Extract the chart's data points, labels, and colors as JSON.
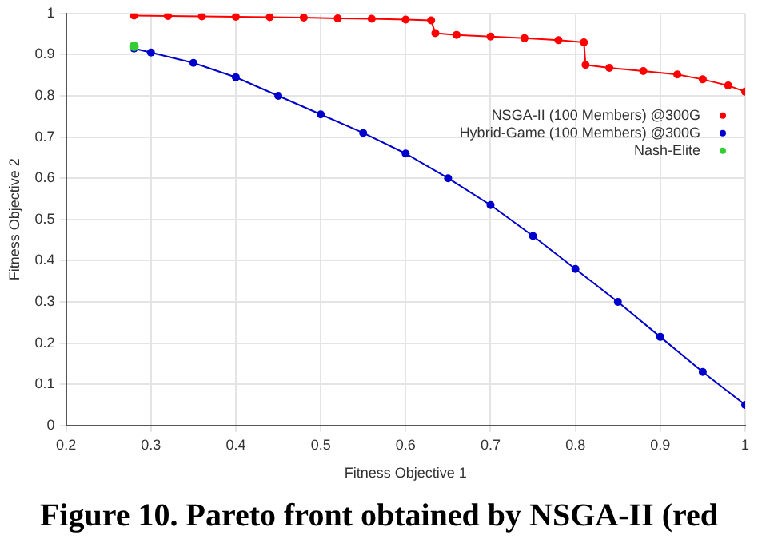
{
  "chart_data": {
    "type": "line",
    "xlabel": "Fitness Objective 1",
    "ylabel": "Fitness Objective 2",
    "annotations": [
      "Figure 10. Pareto front obtained by NSGA-II (red"
    ],
    "xlim": [
      0.2,
      1
    ],
    "xticks": [
      0.2,
      0.3,
      0.4,
      0.5,
      0.6,
      0.7,
      0.8,
      0.9,
      1
    ],
    "ylim": [
      0,
      1
    ],
    "yticks": [
      0,
      0.1,
      0.2,
      0.3,
      0.4,
      0.5,
      0.6,
      0.7,
      0.8,
      0.9,
      1
    ],
    "grid": true,
    "legend": "top right",
    "marker": "circle",
    "series": [
      {
        "name": "NSGA-II (100 Members) @300G",
        "color": "#ff0000",
        "x": [
          0.28,
          0.32,
          0.36,
          0.4,
          0.44,
          0.48,
          0.52,
          0.56,
          0.6,
          0.63,
          0.635,
          0.66,
          0.7,
          0.74,
          0.78,
          0.81,
          0.812,
          0.84,
          0.88,
          0.92,
          0.95,
          0.98,
          1
        ],
        "values": [
          0.995,
          0.994,
          0.993,
          0.992,
          0.991,
          0.99,
          0.988,
          0.987,
          0.985,
          0.983,
          0.952,
          0.948,
          0.944,
          0.94,
          0.935,
          0.93,
          0.875,
          0.868,
          0.86,
          0.852,
          0.84,
          0.825,
          0.81
        ]
      },
      {
        "name": "Hybrid-Game (100 Members) @300G",
        "color": "#0000cc",
        "x": [
          0.28,
          0.3,
          0.35,
          0.4,
          0.45,
          0.5,
          0.55,
          0.6,
          0.65,
          0.7,
          0.75,
          0.8,
          0.85,
          0.9,
          0.95,
          1
        ],
        "values": [
          0.915,
          0.905,
          0.88,
          0.845,
          0.8,
          0.755,
          0.71,
          0.66,
          0.6,
          0.535,
          0.46,
          0.38,
          0.3,
          0.215,
          0.13,
          0.05
        ]
      },
      {
        "name": "Nash-Elite",
        "color": "#33cc33",
        "type": "scatter",
        "x": [
          0.28
        ],
        "values": [
          0.92
        ]
      }
    ]
  }
}
